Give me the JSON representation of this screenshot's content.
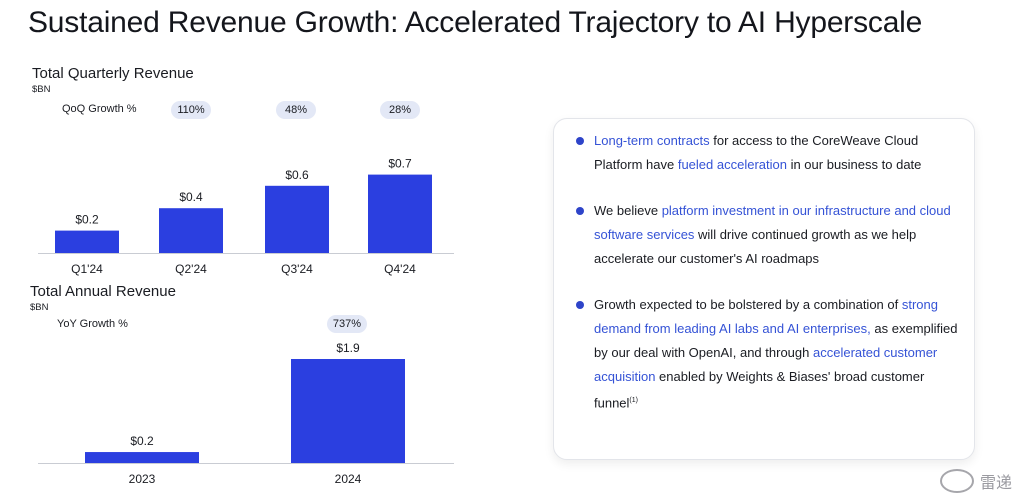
{
  "page": {
    "title": "Sustained Revenue Growth: Accelerated Trajectory to AI Hyperscale"
  },
  "colors": {
    "bar": "#2b3fe0",
    "pill": "#e3e8f6",
    "highlight": "#3553d6"
  },
  "chart_data": [
    {
      "type": "bar",
      "title": "Total Quarterly Revenue",
      "unit": "$BN",
      "categories": [
        "Q1'24",
        "Q2'24",
        "Q3'24",
        "Q4'24"
      ],
      "values": [
        0.2,
        0.4,
        0.6,
        0.7
      ],
      "value_labels": [
        "$0.2",
        "$0.4",
        "$0.6",
        "$0.7"
      ],
      "growth_label": "QoQ Growth %",
      "growth_values": [
        "",
        "110%",
        "48%",
        "28%"
      ],
      "ylim": [
        0,
        0.75
      ]
    },
    {
      "type": "bar",
      "title": "Total Annual Revenue",
      "unit": "$BN",
      "categories": [
        "2023",
        "2024"
      ],
      "values": [
        0.2,
        1.9
      ],
      "value_labels": [
        "$0.2",
        "$1.9"
      ],
      "growth_label": "YoY Growth %",
      "growth_values": [
        "",
        "737%"
      ],
      "ylim": [
        0,
        1.9
      ]
    }
  ],
  "bullets": [
    {
      "parts": [
        {
          "text": "Long-term contracts",
          "hl": true
        },
        {
          "text": " for access to the CoreWeave Cloud Platform have ",
          "hl": false
        },
        {
          "text": "fueled acceleration",
          "hl": true
        },
        {
          "text": " in our business to date",
          "hl": false
        }
      ]
    },
    {
      "parts": [
        {
          "text": "We believe ",
          "hl": false
        },
        {
          "text": "platform investment in our infrastructure and cloud software services",
          "hl": true
        },
        {
          "text": " will drive continued growth as we help accelerate our customer's AI roadmaps",
          "hl": false
        }
      ]
    },
    {
      "parts": [
        {
          "text": "Growth expected to be bolstered by a combination of ",
          "hl": false
        },
        {
          "text": "strong demand from leading AI labs and AI enterprises,",
          "hl": true
        },
        {
          "text": " as exemplified by our deal with OpenAI, and through ",
          "hl": false
        },
        {
          "text": "accelerated customer acquisition",
          "hl": true
        },
        {
          "text": " enabled by Weights & Biases' broad customer funnel",
          "hl": false
        },
        {
          "text": "(1)",
          "hl": false,
          "sup": true
        }
      ]
    }
  ],
  "watermark": {
    "text": "雷递"
  }
}
